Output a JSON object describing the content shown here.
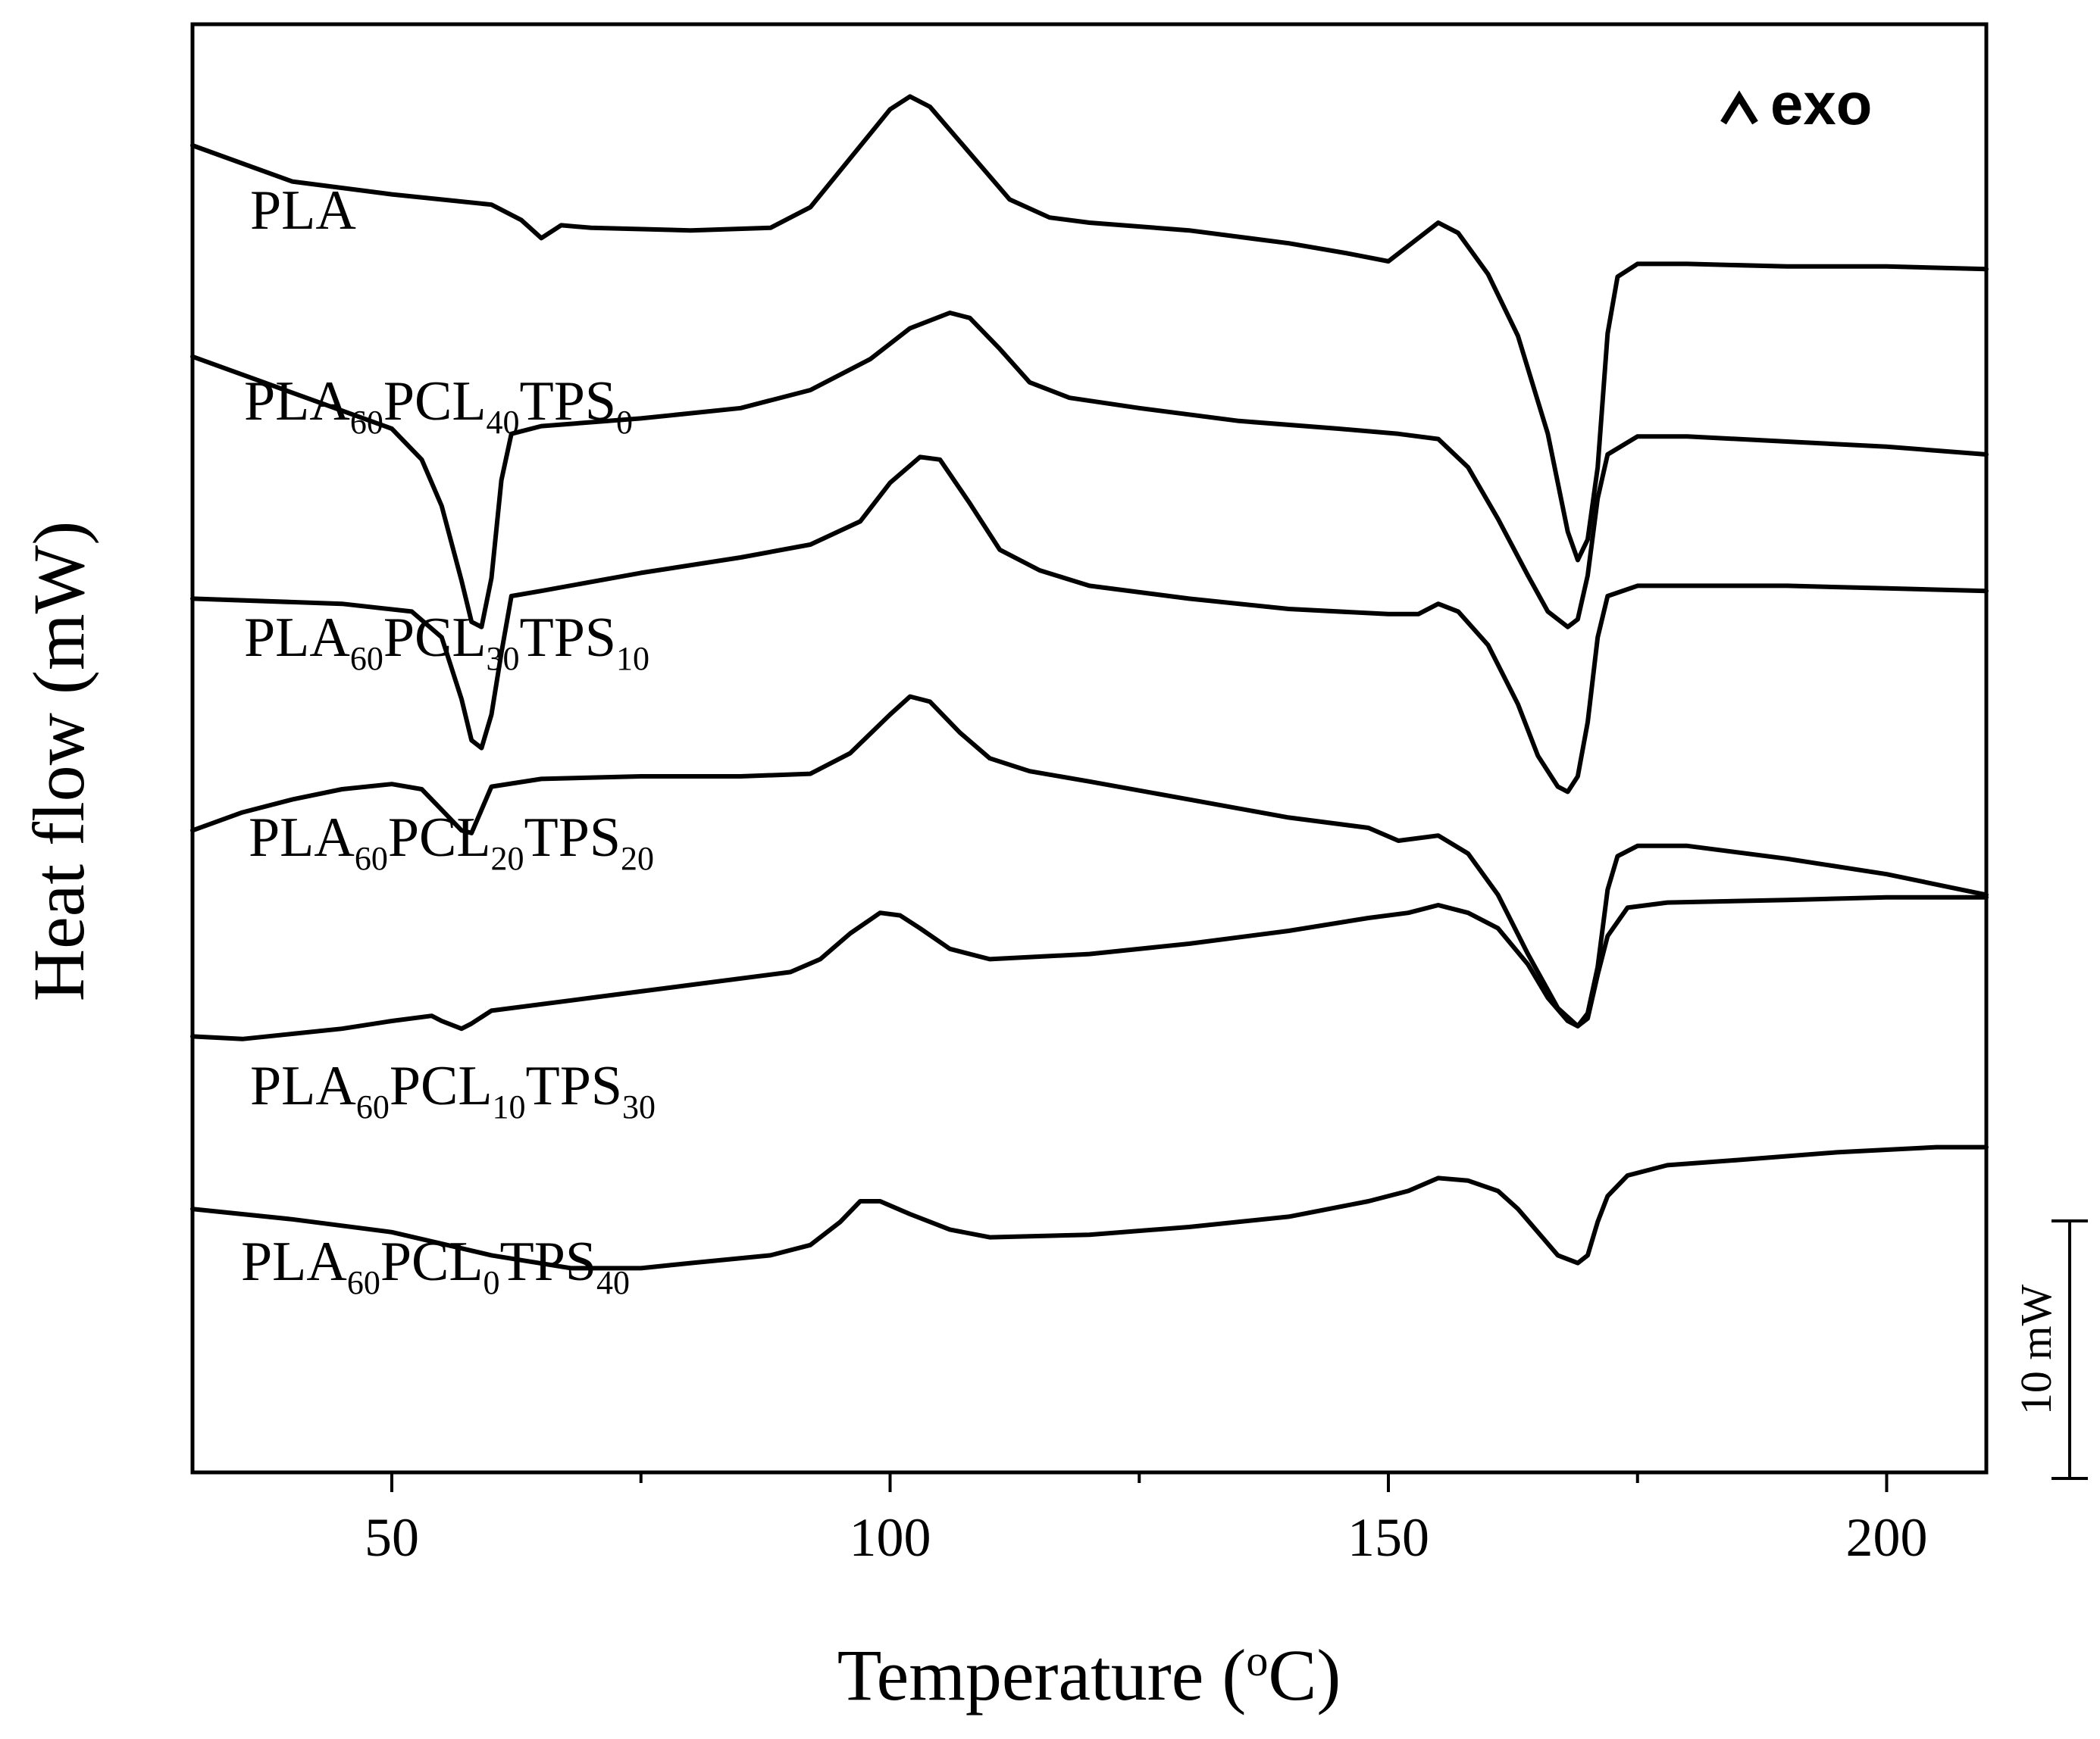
{
  "chart_data": {
    "type": "line",
    "title": "",
    "xlabel": "Temperature (oC)",
    "xlabel_parts": [
      "Temperature (",
      "o",
      "C)"
    ],
    "ylabel": "Heat flow (mW)",
    "xlim": [
      30,
      210
    ],
    "xticks": [
      50,
      100,
      150,
      200
    ],
    "xtick_labels": [
      "50",
      "100",
      "150",
      "200"
    ],
    "y_units": "mW",
    "annotation_exo": "exo",
    "scale_bar_label": "10 mW",
    "scale_bar_mw": 10,
    "series": [
      {
        "name": "PLA",
        "label_parts": [
          {
            "t": "PLA",
            "sub": false
          }
        ],
        "points": [
          [
            30,
            0
          ],
          [
            40,
            -1.4
          ],
          [
            50,
            -1.9
          ],
          [
            60,
            -2.3
          ],
          [
            63,
            -2.9
          ],
          [
            65,
            -3.6
          ],
          [
            67,
            -3.1
          ],
          [
            70,
            -3.2
          ],
          [
            80,
            -3.3
          ],
          [
            88,
            -3.2
          ],
          [
            92,
            -2.4
          ],
          [
            96,
            -0.5
          ],
          [
            100,
            1.4
          ],
          [
            102,
            1.9
          ],
          [
            104,
            1.5
          ],
          [
            108,
            -0.3
          ],
          [
            112,
            -2.1
          ],
          [
            116,
            -2.8
          ],
          [
            120,
            -3.0
          ],
          [
            130,
            -3.3
          ],
          [
            140,
            -3.8
          ],
          [
            146,
            -4.2
          ],
          [
            150,
            -4.5
          ],
          [
            152,
            -3.9
          ],
          [
            155,
            -3.0
          ],
          [
            157,
            -3.4
          ],
          [
            160,
            -5.0
          ],
          [
            163,
            -7.4
          ],
          [
            166,
            -11.2
          ],
          [
            168,
            -15.0
          ],
          [
            169,
            -16.1
          ],
          [
            170,
            -15.3
          ],
          [
            171,
            -12.5
          ],
          [
            172,
            -7.3
          ],
          [
            173,
            -5.1
          ],
          [
            175,
            -4.6
          ],
          [
            180,
            -4.6
          ],
          [
            190,
            -4.7
          ],
          [
            200,
            -4.7
          ],
          [
            210,
            -4.8
          ]
        ],
        "offset_mw": 30.0
      },
      {
        "name": "PLA60PCL40TPS0",
        "label_parts": [
          {
            "t": "PLA",
            "sub": false
          },
          {
            "t": "60",
            "sub": true
          },
          {
            "t": "PCL",
            "sub": false
          },
          {
            "t": "40",
            "sub": true
          },
          {
            "t": "TPS",
            "sub": false
          },
          {
            "t": "0",
            "sub": true
          }
        ],
        "points": [
          [
            30,
            0
          ],
          [
            40,
            -1.4
          ],
          [
            50,
            -2.8
          ],
          [
            53,
            -4.0
          ],
          [
            55,
            -5.8
          ],
          [
            57,
            -8.7
          ],
          [
            58,
            -10.3
          ],
          [
            59,
            -10.5
          ],
          [
            60,
            -8.6
          ],
          [
            61,
            -4.8
          ],
          [
            62,
            -3.0
          ],
          [
            65,
            -2.7
          ],
          [
            75,
            -2.4
          ],
          [
            85,
            -2.0
          ],
          [
            92,
            -1.3
          ],
          [
            98,
            -0.1
          ],
          [
            102,
            1.1
          ],
          [
            106,
            1.7
          ],
          [
            108,
            1.5
          ],
          [
            111,
            0.3
          ],
          [
            114,
            -1.0
          ],
          [
            118,
            -1.6
          ],
          [
            125,
            -2.0
          ],
          [
            135,
            -2.5
          ],
          [
            145,
            -2.8
          ],
          [
            151,
            -3.0
          ],
          [
            155,
            -3.2
          ],
          [
            158,
            -4.3
          ],
          [
            161,
            -6.3
          ],
          [
            164,
            -8.5
          ],
          [
            166,
            -9.9
          ],
          [
            168,
            -10.5
          ],
          [
            169,
            -10.2
          ],
          [
            170,
            -8.5
          ],
          [
            171,
            -5.5
          ],
          [
            172,
            -3.8
          ],
          [
            175,
            -3.1
          ],
          [
            180,
            -3.1
          ],
          [
            190,
            -3.3
          ],
          [
            200,
            -3.5
          ],
          [
            210,
            -3.8
          ]
        ],
        "offset_mw": 21.8
      },
      {
        "name": "PLA60PCL30TPS10",
        "label_parts": [
          {
            "t": "PLA",
            "sub": false
          },
          {
            "t": "60",
            "sub": true
          },
          {
            "t": "PCL",
            "sub": false
          },
          {
            "t": "30",
            "sub": true
          },
          {
            "t": "TPS",
            "sub": false
          },
          {
            "t": "10",
            "sub": true
          }
        ],
        "points": [
          [
            30,
            0
          ],
          [
            45,
            -0.2
          ],
          [
            52,
            -0.5
          ],
          [
            55,
            -1.5
          ],
          [
            57,
            -3.9
          ],
          [
            58,
            -5.5
          ],
          [
            59,
            -5.8
          ],
          [
            60,
            -4.5
          ],
          [
            61,
            -2.1
          ],
          [
            62,
            0.1
          ],
          [
            65,
            0.3
          ],
          [
            75,
            1.0
          ],
          [
            85,
            1.6
          ],
          [
            92,
            2.1
          ],
          [
            97,
            3.0
          ],
          [
            100,
            4.5
          ],
          [
            103,
            5.5
          ],
          [
            105,
            5.4
          ],
          [
            108,
            3.7
          ],
          [
            111,
            1.9
          ],
          [
            115,
            1.1
          ],
          [
            120,
            0.5
          ],
          [
            130,
            0.0
          ],
          [
            140,
            -0.4
          ],
          [
            150,
            -0.6
          ],
          [
            153,
            -0.6
          ],
          [
            155,
            -0.2
          ],
          [
            157,
            -0.5
          ],
          [
            160,
            -1.8
          ],
          [
            163,
            -4.1
          ],
          [
            165,
            -6.1
          ],
          [
            167,
            -7.3
          ],
          [
            168,
            -7.5
          ],
          [
            169,
            -6.9
          ],
          [
            170,
            -4.8
          ],
          [
            171,
            -1.5
          ],
          [
            172,
            0.1
          ],
          [
            175,
            0.5
          ],
          [
            180,
            0.5
          ],
          [
            190,
            0.5
          ],
          [
            200,
            0.4
          ],
          [
            210,
            0.3
          ]
        ],
        "offset_mw": 12.4
      },
      {
        "name": "PLA60PCL20TPS20",
        "label_parts": [
          {
            "t": "PLA",
            "sub": false
          },
          {
            "t": "60",
            "sub": true
          },
          {
            "t": "PCL",
            "sub": false
          },
          {
            "t": "20",
            "sub": true
          },
          {
            "t": "TPS",
            "sub": false
          },
          {
            "t": "20",
            "sub": true
          }
        ],
        "points": [
          [
            30,
            0
          ],
          [
            35,
            0.7
          ],
          [
            40,
            1.2
          ],
          [
            45,
            1.6
          ],
          [
            50,
            1.8
          ],
          [
            53,
            1.6
          ],
          [
            55,
            0.8
          ],
          [
            57,
            0.0
          ],
          [
            58,
            -0.1
          ],
          [
            59,
            0.8
          ],
          [
            60,
            1.7
          ],
          [
            65,
            2.0
          ],
          [
            75,
            2.1
          ],
          [
            85,
            2.1
          ],
          [
            92,
            2.2
          ],
          [
            96,
            3.0
          ],
          [
            100,
            4.5
          ],
          [
            102,
            5.2
          ],
          [
            104,
            5.0
          ],
          [
            107,
            3.8
          ],
          [
            110,
            2.8
          ],
          [
            114,
            2.3
          ],
          [
            120,
            1.9
          ],
          [
            130,
            1.2
          ],
          [
            140,
            0.5
          ],
          [
            148,
            0.1
          ],
          [
            151,
            -0.4
          ],
          [
            155,
            -0.2
          ],
          [
            158,
            -0.9
          ],
          [
            161,
            -2.5
          ],
          [
            164,
            -4.8
          ],
          [
            167,
            -6.9
          ],
          [
            169,
            -7.6
          ],
          [
            170,
            -7.1
          ],
          [
            171,
            -5.3
          ],
          [
            172,
            -2.3
          ],
          [
            173,
            -1.0
          ],
          [
            175,
            -0.6
          ],
          [
            180,
            -0.6
          ],
          [
            190,
            -1.1
          ],
          [
            200,
            -1.7
          ],
          [
            210,
            -2.5
          ]
        ],
        "offset_mw": 3.4
      },
      {
        "name": "PLA60PCL10TPS30",
        "label_parts": [
          {
            "t": "PLA",
            "sub": false
          },
          {
            "t": "60",
            "sub": true
          },
          {
            "t": "PCL",
            "sub": false
          },
          {
            "t": "10",
            "sub": true
          },
          {
            "t": "TPS",
            "sub": false
          },
          {
            "t": "30",
            "sub": true
          }
        ],
        "points": [
          [
            30,
            0
          ],
          [
            35,
            -0.1
          ],
          [
            40,
            0.1
          ],
          [
            45,
            0.3
          ],
          [
            50,
            0.6
          ],
          [
            54,
            0.8
          ],
          [
            55,
            0.6
          ],
          [
            57,
            0.3
          ],
          [
            58,
            0.5
          ],
          [
            60,
            1.0
          ],
          [
            70,
            1.5
          ],
          [
            80,
            2.0
          ],
          [
            90,
            2.5
          ],
          [
            93,
            3.0
          ],
          [
            96,
            4.0
          ],
          [
            99,
            4.8
          ],
          [
            101,
            4.7
          ],
          [
            103,
            4.2
          ],
          [
            106,
            3.4
          ],
          [
            110,
            3.0
          ],
          [
            120,
            3.2
          ],
          [
            130,
            3.6
          ],
          [
            140,
            4.1
          ],
          [
            148,
            4.6
          ],
          [
            152,
            4.8
          ],
          [
            155,
            5.1
          ],
          [
            158,
            4.8
          ],
          [
            161,
            4.2
          ],
          [
            164,
            2.8
          ],
          [
            166,
            1.5
          ],
          [
            168,
            0.6
          ],
          [
            169,
            0.4
          ],
          [
            170,
            0.7
          ],
          [
            171,
            2.4
          ],
          [
            172,
            3.9
          ],
          [
            174,
            5.0
          ],
          [
            178,
            5.2
          ],
          [
            190,
            5.3
          ],
          [
            200,
            5.4
          ],
          [
            210,
            5.4
          ]
        ],
        "offset_mw": -4.6
      },
      {
        "name": "PLA60PCL0TPS40",
        "label_parts": [
          {
            "t": "PLA",
            "sub": false
          },
          {
            "t": "60",
            "sub": true
          },
          {
            "t": "PCL",
            "sub": false
          },
          {
            "t": "0",
            "sub": true
          },
          {
            "t": "TPS",
            "sub": false
          },
          {
            "t": "40",
            "sub": true
          }
        ],
        "points": [
          [
            30,
            0
          ],
          [
            40,
            -0.4
          ],
          [
            50,
            -0.9
          ],
          [
            60,
            -1.8
          ],
          [
            68,
            -2.3
          ],
          [
            75,
            -2.3
          ],
          [
            80,
            -2.1
          ],
          [
            88,
            -1.8
          ],
          [
            92,
            -1.4
          ],
          [
            95,
            -0.5
          ],
          [
            97,
            0.3
          ],
          [
            99,
            0.3
          ],
          [
            102,
            -0.2
          ],
          [
            106,
            -0.8
          ],
          [
            110,
            -1.1
          ],
          [
            120,
            -1.0
          ],
          [
            130,
            -0.7
          ],
          [
            140,
            -0.3
          ],
          [
            148,
            0.3
          ],
          [
            152,
            0.7
          ],
          [
            155,
            1.2
          ],
          [
            158,
            1.1
          ],
          [
            161,
            0.7
          ],
          [
            163,
            0.0
          ],
          [
            165,
            -0.9
          ],
          [
            167,
            -1.8
          ],
          [
            169,
            -2.1
          ],
          [
            170,
            -1.8
          ],
          [
            171,
            -0.5
          ],
          [
            172,
            0.5
          ],
          [
            174,
            1.3
          ],
          [
            178,
            1.7
          ],
          [
            185,
            1.9
          ],
          [
            195,
            2.2
          ],
          [
            205,
            2.4
          ],
          [
            210,
            2.4
          ]
        ],
        "offset_mw": -11.3
      }
    ]
  }
}
